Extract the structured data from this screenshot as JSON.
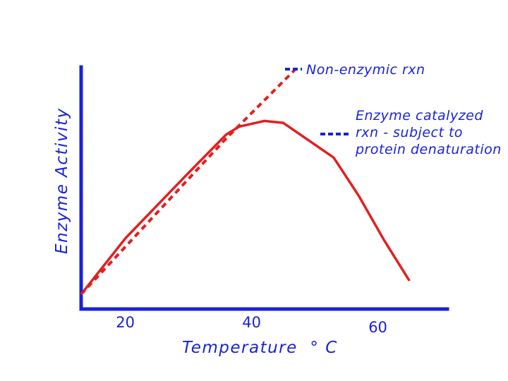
{
  "chart_data": {
    "type": "line",
    "title": "",
    "xlabel": "Temperature  ° C",
    "ylabel": "Enzyme Activity",
    "xticks": [
      20,
      40,
      60
    ],
    "xlim": [
      13,
      71
    ],
    "ylim": [
      0,
      100
    ],
    "grid": false,
    "series": [
      {
        "key": "non_enzymic",
        "points": [
          [
            13,
            4
          ],
          [
            36,
            85
          ],
          [
            47,
            121
          ]
        ],
        "style": "dashed",
        "color": "#e02020"
      },
      {
        "key": "enzyme_catalyzed",
        "points": [
          [
            13,
            4
          ],
          [
            20,
            33
          ],
          [
            30,
            67
          ],
          [
            36,
            87
          ],
          [
            38,
            91
          ],
          [
            42,
            94
          ],
          [
            45,
            93
          ],
          [
            49,
            84
          ],
          [
            53,
            75
          ],
          [
            57,
            55
          ],
          [
            61,
            32
          ],
          [
            65,
            11
          ]
        ],
        "style": "solid",
        "color": "#e02020"
      }
    ],
    "annotations": [
      {
        "key": "non_enzymic",
        "lines": [
          "Non-enzymic rxn"
        ],
        "marker_color": "#1a22d6"
      },
      {
        "key": "enzyme_catalyzed",
        "lines": [
          "Enzyme catalyzed",
          "rxn - subject to",
          "protein denaturation"
        ],
        "marker_color": "#1a22d6"
      }
    ],
    "colors": {
      "axis": "#1a22d6",
      "text": "#1a22d6",
      "curve": "#e02020",
      "background": "#ffffff"
    }
  }
}
